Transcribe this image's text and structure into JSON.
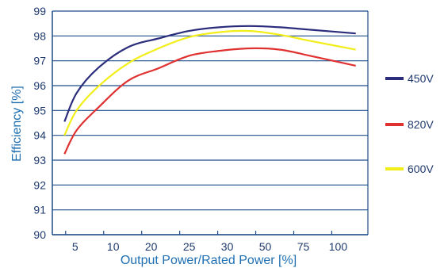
{
  "chart_data": {
    "type": "line",
    "xlabel": "Output Power/Rated Power [%]",
    "ylabel": "Efficiency  [%]",
    "categories": [
      "5",
      "10",
      "20",
      "25",
      "30",
      "50",
      "75",
      "100"
    ],
    "ylim": [
      90,
      99
    ],
    "yticks": [
      "90",
      "91",
      "92",
      "93",
      "94",
      "95",
      "96",
      "97",
      "98",
      "99"
    ],
    "grid": true,
    "legend_position": "right",
    "series": [
      {
        "name": "450V",
        "color": "#2b2d7c",
        "points": [
          [
            4,
            94.55
          ],
          [
            8,
            95.7
          ],
          [
            15,
            96.7
          ],
          [
            25,
            97.55
          ],
          [
            35,
            97.9
          ],
          [
            45,
            98.2
          ],
          [
            55,
            98.35
          ],
          [
            65,
            98.4
          ],
          [
            75,
            98.35
          ],
          [
            85,
            98.25
          ],
          [
            100,
            98.1
          ]
        ]
      },
      {
        "name": "820V",
        "color": "#e03030",
        "points": [
          [
            4,
            93.25
          ],
          [
            8,
            94.2
          ],
          [
            15,
            95.1
          ],
          [
            25,
            96.2
          ],
          [
            35,
            96.7
          ],
          [
            45,
            97.2
          ],
          [
            55,
            97.4
          ],
          [
            65,
            97.5
          ],
          [
            75,
            97.45
          ],
          [
            85,
            97.2
          ],
          [
            100,
            96.8
          ]
        ]
      },
      {
        "name": "600V",
        "color": "#f2ee1a",
        "points": [
          [
            4,
            94.0
          ],
          [
            8,
            95.0
          ],
          [
            15,
            95.95
          ],
          [
            25,
            96.9
          ],
          [
            35,
            97.5
          ],
          [
            45,
            97.95
          ],
          [
            55,
            98.15
          ],
          [
            65,
            98.2
          ],
          [
            75,
            98.05
          ],
          [
            85,
            97.8
          ],
          [
            100,
            97.45
          ]
        ]
      }
    ]
  }
}
